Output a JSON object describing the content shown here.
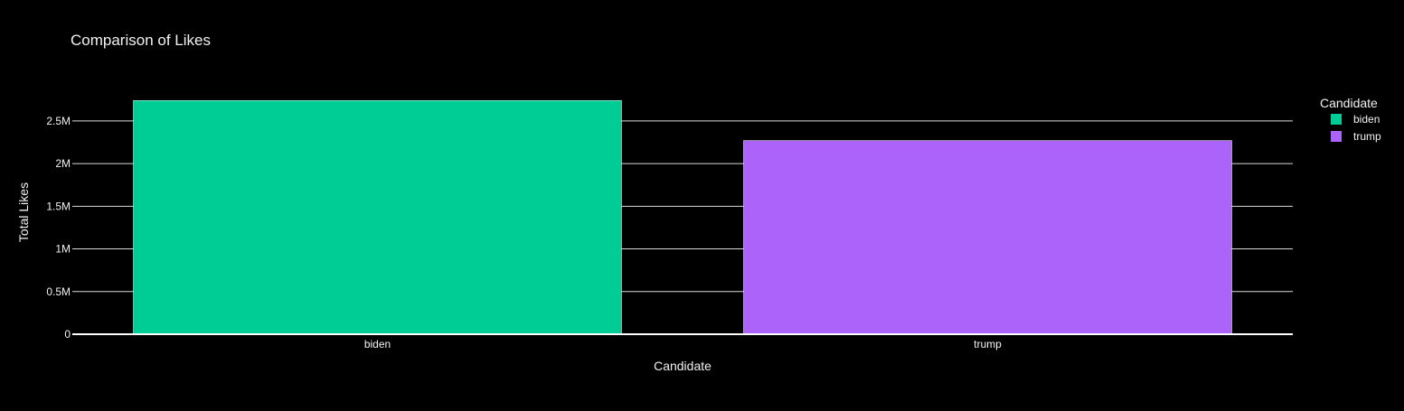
{
  "chart_data": {
    "type": "bar",
    "title": "Comparison of Likes",
    "xlabel": "Candidate",
    "ylabel": "Total Likes",
    "categories": [
      "biden",
      "trump"
    ],
    "values": [
      2740000,
      2270000
    ],
    "colors": [
      "#00cc96",
      "#ab63fa"
    ],
    "ylim": [
      0,
      2880000
    ],
    "yticks": [
      0,
      500000,
      1000000,
      1500000,
      2000000,
      2500000
    ],
    "ytick_labels": [
      "0",
      "0.5M",
      "1M",
      "1.5M",
      "2M",
      "2.5M"
    ],
    "grid": true,
    "legend": {
      "title": "Candidate",
      "placement": "top-right",
      "entries": [
        "biden",
        "trump"
      ]
    }
  }
}
